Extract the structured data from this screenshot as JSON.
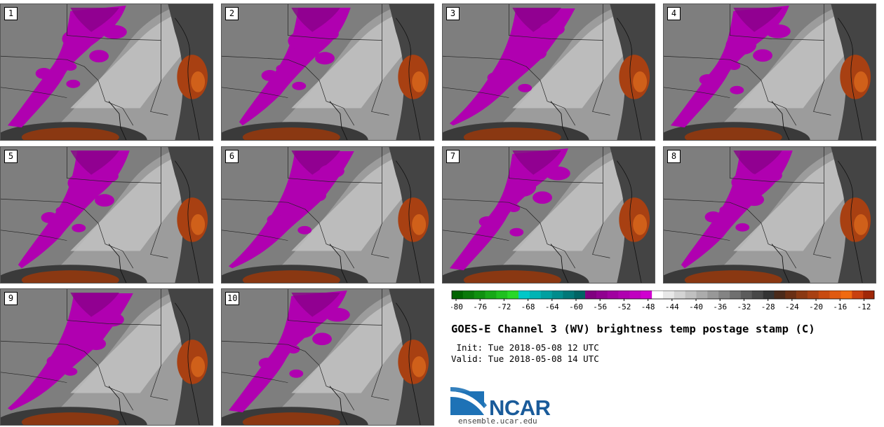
{
  "panels": [
    {
      "label": "1"
    },
    {
      "label": "2"
    },
    {
      "label": "3"
    },
    {
      "label": "4"
    },
    {
      "label": "5"
    },
    {
      "label": "6"
    },
    {
      "label": "7"
    },
    {
      "label": "8"
    },
    {
      "label": "9"
    },
    {
      "label": "10"
    }
  ],
  "colorbar": {
    "tick_labels": [
      "-80",
      "-76",
      "-72",
      "-68",
      "-64",
      "-60",
      "-56",
      "-52",
      "-48",
      "-44",
      "-40",
      "-36",
      "-32",
      "-28",
      "-24",
      "-20",
      "-16",
      "-12"
    ],
    "colors": [
      "#006400",
      "#0a7a0a",
      "#109010",
      "#18a818",
      "#20c020",
      "#28d828",
      "#00c8c8",
      "#00b4b4",
      "#00a0a0",
      "#008c8c",
      "#007878",
      "#006464",
      "#800080",
      "#900090",
      "#a000a0",
      "#b000b0",
      "#c000c0",
      "#d000d0",
      "#ffffff",
      "#e8e8e8",
      "#d4d4d4",
      "#c0c0c0",
      "#acacac",
      "#989898",
      "#848484",
      "#707070",
      "#5c5c5c",
      "#484848",
      "#343434",
      "#4a2a1a",
      "#6a2f14",
      "#8a3812",
      "#a84012",
      "#c84a10",
      "#e05a10",
      "#f06a10",
      "#c84010",
      "#a02808"
    ]
  },
  "title": "GOES-E Channel 3 (WV) brightness temp postage stamp (C)",
  "init": " Init: Tue 2018-05-08 12 UTC",
  "valid": "Valid: Tue 2018-05-08 14 UTC",
  "logo": {
    "name": "NCAR",
    "url": "ensemble.ucar.edu"
  },
  "colors": {
    "moist": "#b000b0",
    "dry_orange": "#a84012",
    "gray_bg": "#8a8a8a"
  }
}
